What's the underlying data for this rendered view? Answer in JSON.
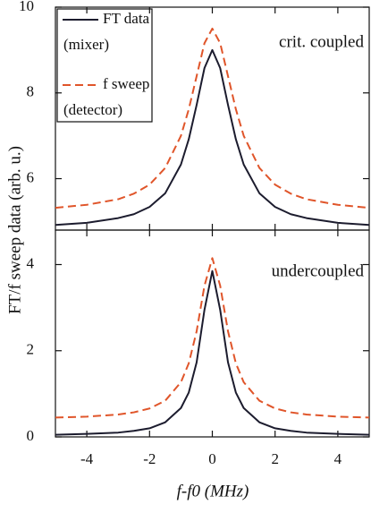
{
  "chart_data": [
    {
      "type": "line",
      "ylabel": "FT/f sweep data (arb. u.)",
      "annotation": "crit. coupled",
      "x": [
        -5,
        -4,
        -3,
        -2.5,
        -2,
        -1.5,
        -1,
        -0.75,
        -0.5,
        -0.25,
        0,
        0.25,
        0.5,
        0.75,
        1,
        1.5,
        2,
        2.5,
        3,
        4,
        5
      ],
      "series": [
        {
          "name": "FT data",
          "note": "(mixer)",
          "color": "#1c1c2e",
          "dash": false,
          "values": [
            4.92,
            4.97,
            5.08,
            5.17,
            5.34,
            5.66,
            6.33,
            6.92,
            7.72,
            8.58,
            9.0,
            8.58,
            7.72,
            6.92,
            6.33,
            5.66,
            5.34,
            5.17,
            5.08,
            4.97,
            4.92
          ]
        },
        {
          "name": "f sweep",
          "note": "(detector)",
          "color": "#e0552a",
          "dash": true,
          "values": [
            5.32,
            5.39,
            5.52,
            5.65,
            5.86,
            6.25,
            7.0,
            7.62,
            8.39,
            9.16,
            9.5,
            9.16,
            8.39,
            7.62,
            7.0,
            6.25,
            5.86,
            5.65,
            5.52,
            5.39,
            5.32
          ]
        }
      ],
      "xlim": [
        -5,
        5
      ],
      "xticks": [
        -4,
        -2,
        0,
        2,
        4
      ],
      "ylim": [
        4.8,
        10
      ],
      "yticks": [
        6,
        8,
        10
      ],
      "legend": "upper left"
    },
    {
      "type": "line",
      "xlabel": "f-f0 (MHz)",
      "annotation": "undercoupled",
      "x": [
        -5,
        -4,
        -3,
        -2.5,
        -2,
        -1.5,
        -1,
        -0.75,
        -0.5,
        -0.25,
        0,
        0.25,
        0.5,
        0.75,
        1,
        1.5,
        2,
        2.5,
        3,
        4,
        5
      ],
      "series": [
        {
          "color": "#1c1c2e",
          "dash": false,
          "values": [
            0.05,
            0.07,
            0.1,
            0.14,
            0.2,
            0.34,
            0.67,
            1.03,
            1.73,
            2.95,
            3.85,
            2.95,
            1.73,
            1.03,
            0.67,
            0.34,
            0.2,
            0.14,
            0.1,
            0.07,
            0.05
          ]
        },
        {
          "color": "#e0552a",
          "dash": true,
          "values": [
            0.45,
            0.47,
            0.52,
            0.57,
            0.66,
            0.84,
            1.27,
            1.71,
            2.45,
            3.51,
            4.15,
            3.51,
            2.45,
            1.71,
            1.27,
            0.84,
            0.66,
            0.57,
            0.52,
            0.47,
            0.45
          ]
        }
      ],
      "xlim": [
        -5,
        5
      ],
      "xticks": [
        -4,
        -2,
        0,
        2,
        4
      ],
      "ylim": [
        0,
        4.8
      ],
      "yticks": [
        0,
        2,
        4
      ]
    }
  ]
}
